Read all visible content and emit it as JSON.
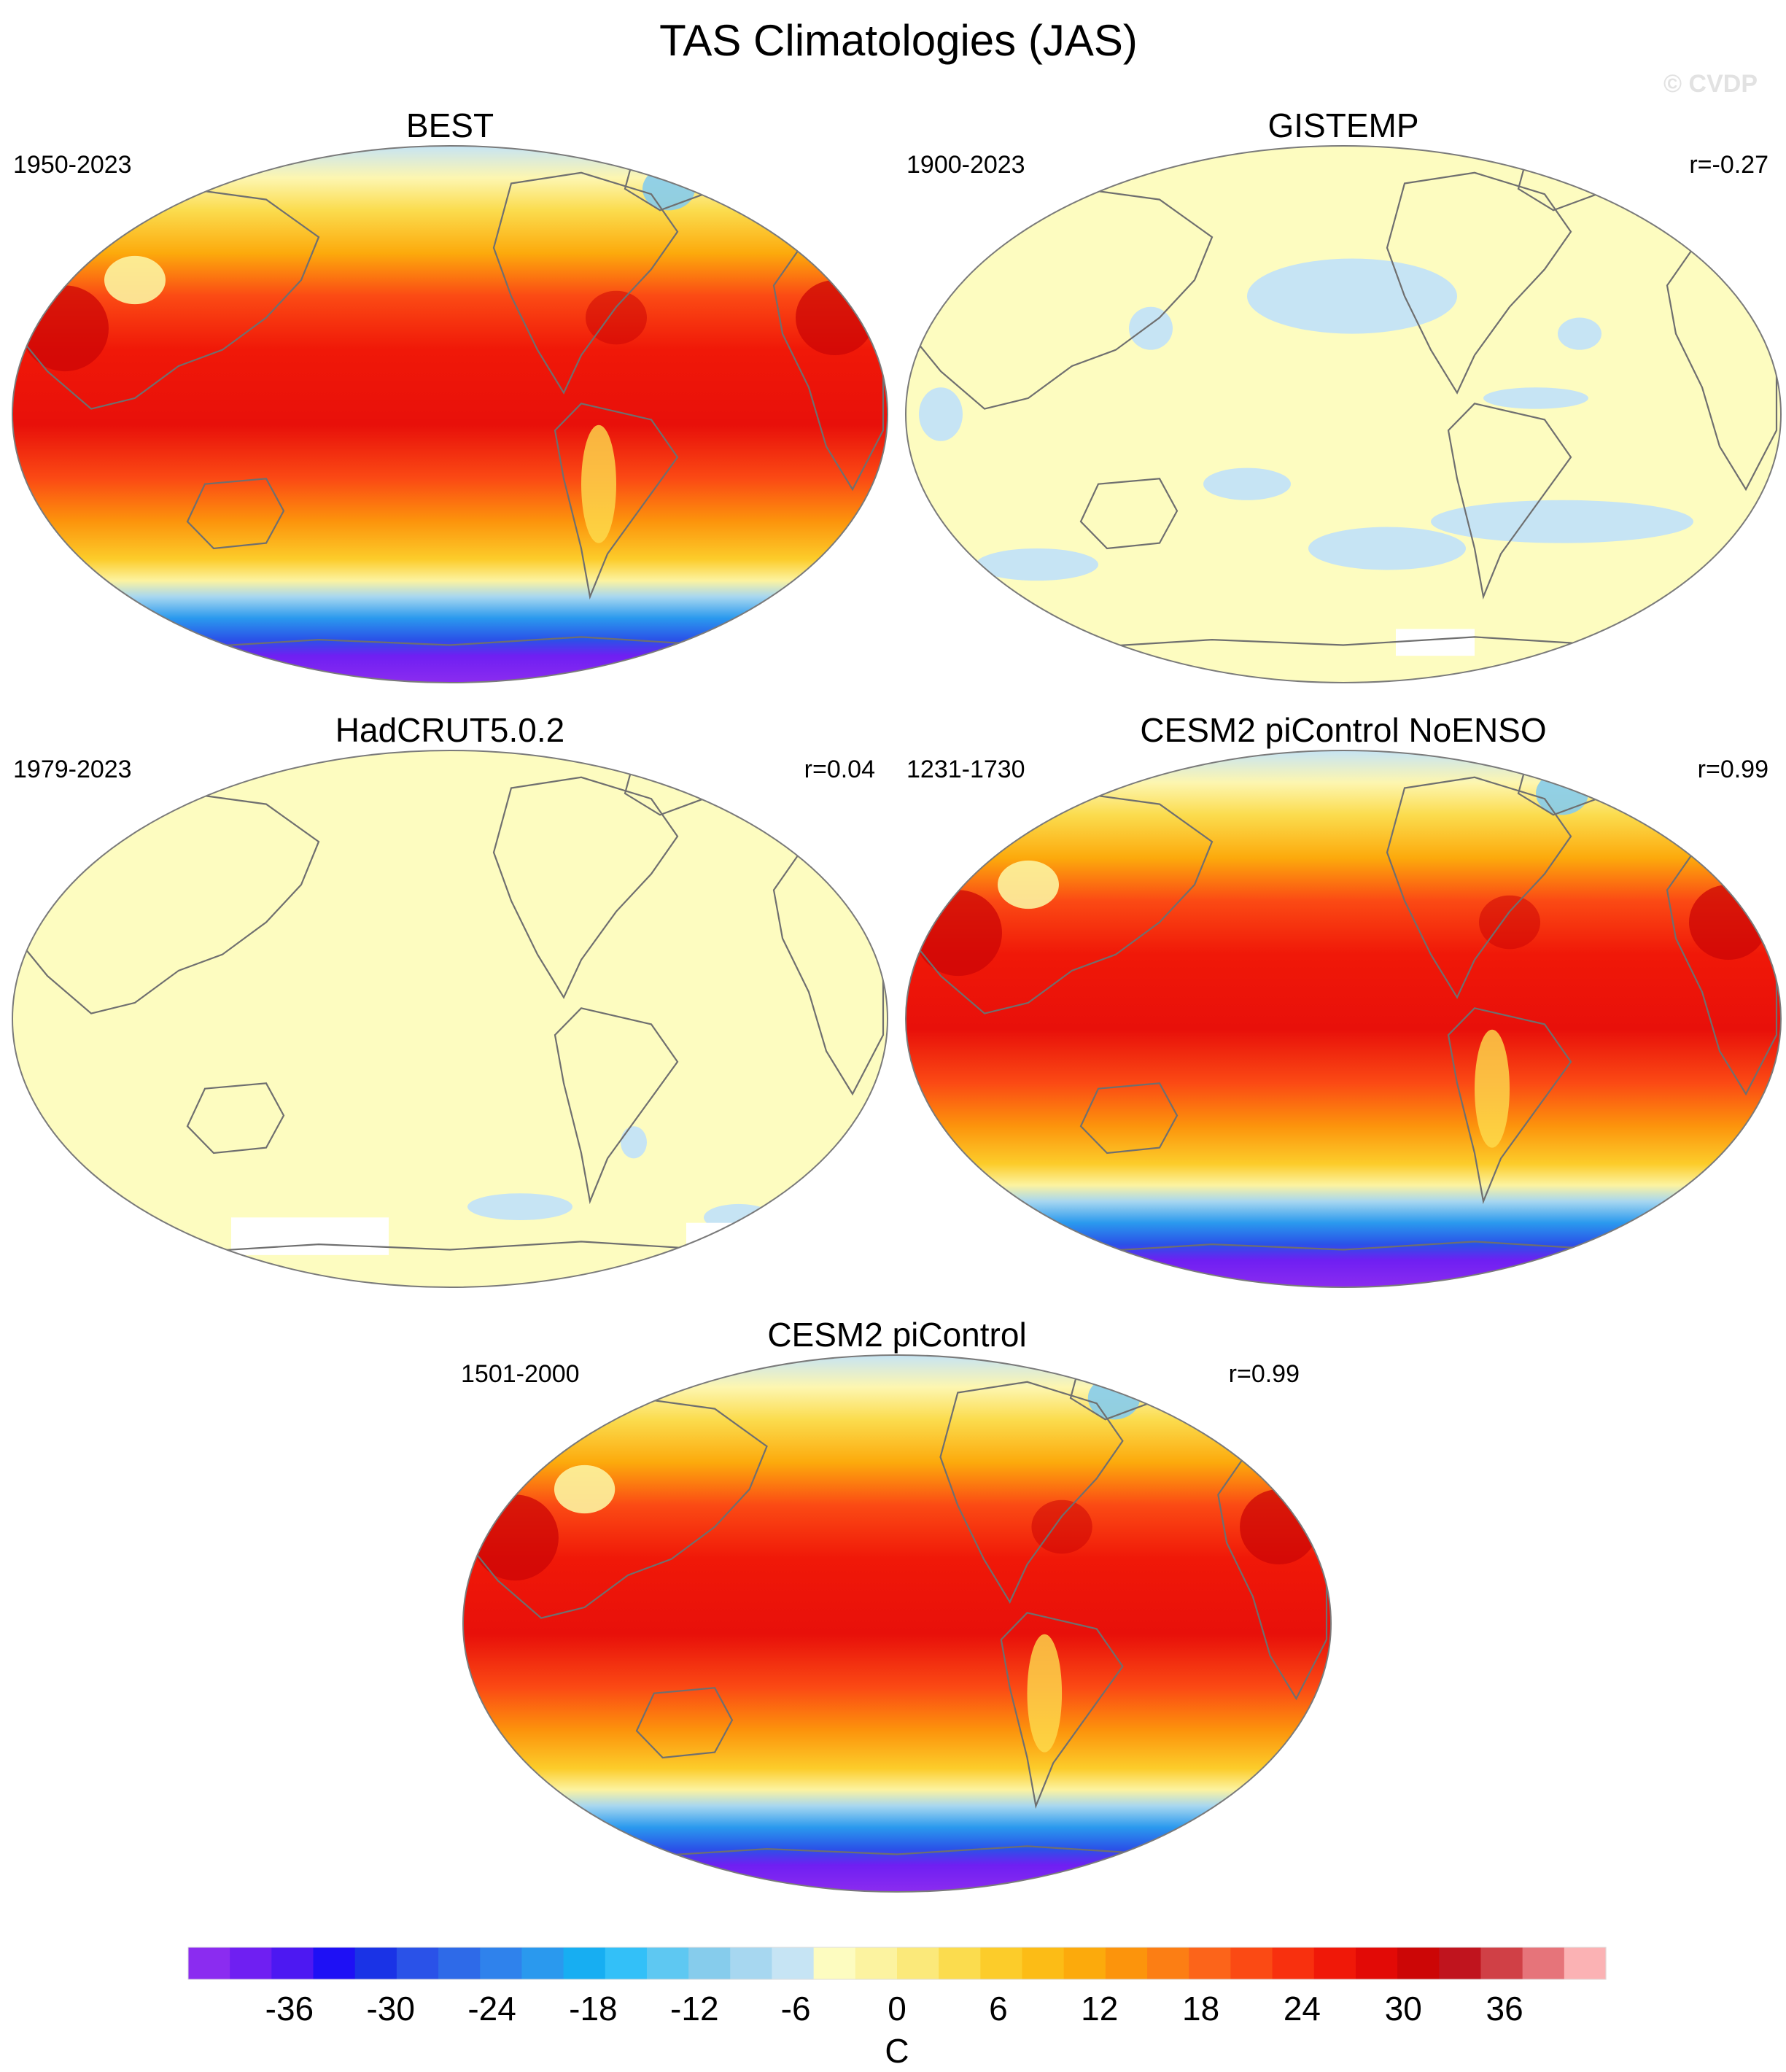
{
  "figure": {
    "title": "TAS Climatologies (JAS)",
    "watermark": "© CVDP"
  },
  "panels": [
    {
      "title": "BEST",
      "period": "1950-2023",
      "r": "",
      "field": "full"
    },
    {
      "title": "GISTEMP",
      "period": "1900-2023",
      "r": "r=-0.27",
      "field": "gistemp"
    },
    {
      "title": "HadCRUT5.0.2",
      "period": "1979-2023",
      "r": "r=0.04",
      "field": "hadcrut"
    },
    {
      "title": "CESM2 piControl NoENSO",
      "period": "1231-1730",
      "r": "r=0.99",
      "field": "full"
    },
    {
      "title": "CESM2 piControl",
      "period": "1501-2000",
      "r": "r=0.99",
      "field": "full"
    }
  ],
  "colorbar": {
    "unit": "C",
    "tick_labels": [
      "-36",
      "-30",
      "-24",
      "-18",
      "-12",
      "-6",
      "0",
      "6",
      "12",
      "18",
      "24",
      "30",
      "36"
    ],
    "colors": [
      "#8b2cf0",
      "#6f1ff2",
      "#4d18f2",
      "#1e10f5",
      "#1a33e6",
      "#2a52e8",
      "#2e6ae8",
      "#2f82ec",
      "#2a99ee",
      "#17aef2",
      "#33c0f8",
      "#5ec8f2",
      "#86ccec",
      "#a7d7f0",
      "#c6e4f4",
      "#fdfcc0",
      "#fcf3a0",
      "#fbe97a",
      "#fbdc4e",
      "#fccc2a",
      "#fcbc16",
      "#fcaa0c",
      "#fc940c",
      "#fc7e14",
      "#fc641a",
      "#fb4a14",
      "#f8300e",
      "#f01808",
      "#e20a06",
      "#cc0606",
      "#c0141e",
      "#d04046",
      "#e6747a",
      "#fbb2b4"
    ],
    "value_min": -42,
    "value_max": 42
  },
  "chart_data": {
    "type": "heatmap",
    "title": "TAS Climatologies (JAS)",
    "variable": "surface air temperature",
    "unit": "C",
    "color_range": [
      -42,
      42
    ],
    "contour_interval": 3,
    "panels": [
      {
        "name": "BEST",
        "period": "1950-2023",
        "r": null
      },
      {
        "name": "GISTEMP",
        "period": "1900-2023",
        "r": -0.27
      },
      {
        "name": "HadCRUT5.0.2",
        "period": "1979-2023",
        "r": 0.04
      },
      {
        "name": "CESM2 piControl NoENSO",
        "period": "1231-1730",
        "r": 0.99
      },
      {
        "name": "CESM2 piControl",
        "period": "1501-2000",
        "r": 0.99
      }
    ]
  }
}
